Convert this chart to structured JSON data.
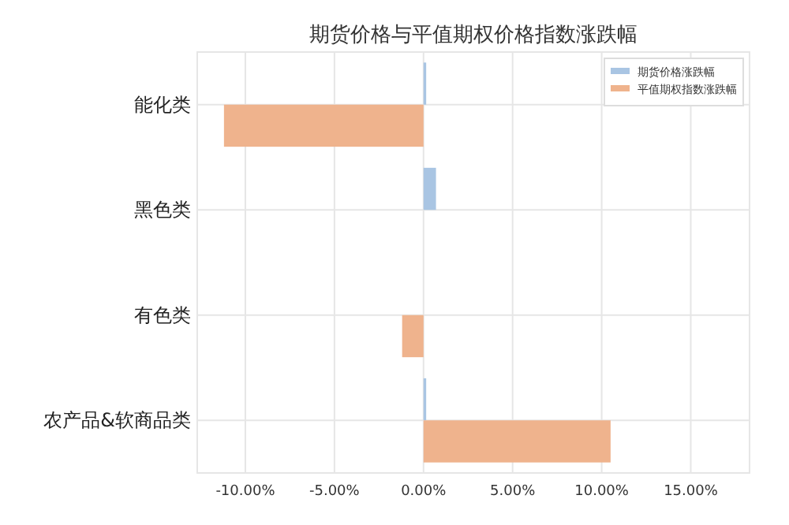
{
  "chart_data": {
    "type": "bar",
    "orientation": "horizontal",
    "title": "期货价格与平值期权价格指数涨跌幅",
    "categories": [
      "能化类",
      "黑色类",
      "有色类",
      "农产品&软商品类"
    ],
    "series": [
      {
        "name": "期货价格涨跌幅",
        "color": "#a9c5e3",
        "values": [
          0.15,
          0.7,
          null,
          0.15
        ]
      },
      {
        "name": "平值期权指数涨跌幅",
        "color": "#efb38d",
        "values": [
          -11.2,
          null,
          -1.2,
          10.5
        ]
      }
    ],
    "xlim": [
      -12.7,
      18.3
    ],
    "xticks": [
      {
        "value": -10,
        "label": "-10.00%"
      },
      {
        "value": -5,
        "label": "-5.00%"
      },
      {
        "value": 0,
        "label": "0.00%"
      },
      {
        "value": 5,
        "label": "5.00%"
      },
      {
        "value": 10,
        "label": "10.00%"
      },
      {
        "value": 15,
        "label": "15.00%"
      }
    ],
    "grid": true,
    "legend": "top right"
  }
}
